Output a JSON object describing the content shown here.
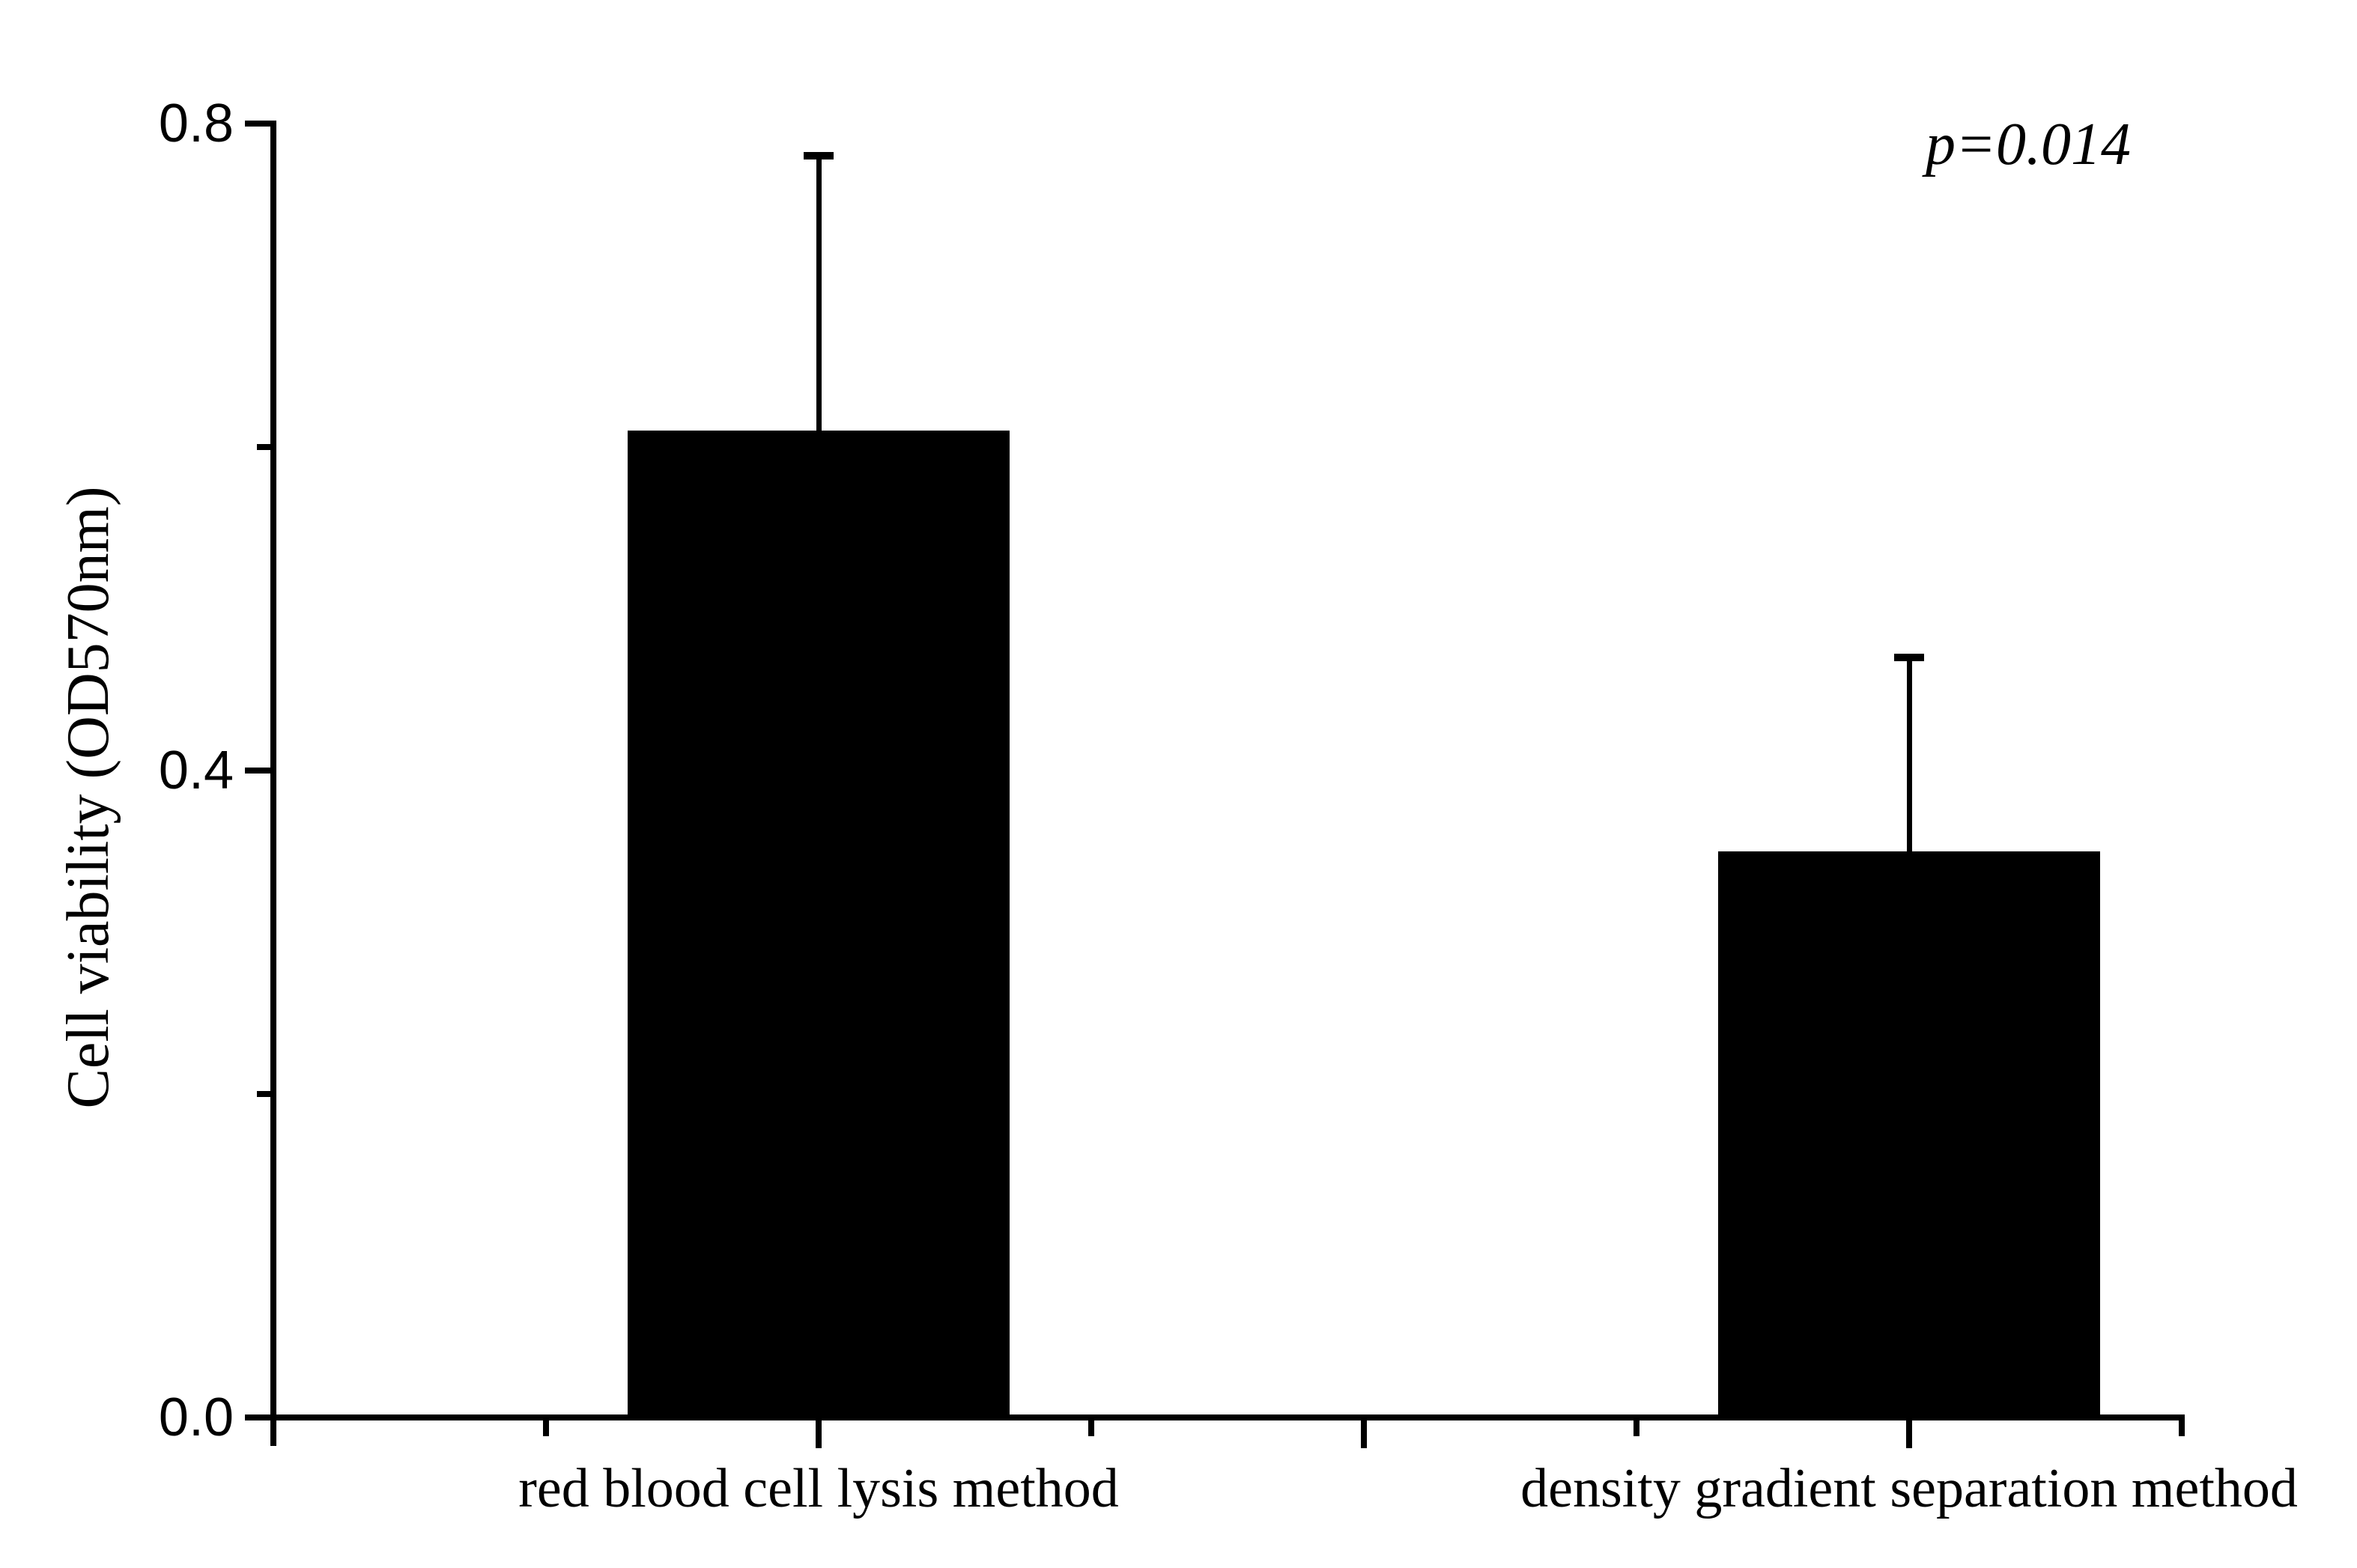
{
  "chart_data": {
    "type": "bar",
    "categories": [
      "red blood cell lysis method",
      "density gradient separation method"
    ],
    "values": [
      0.61,
      0.35
    ],
    "error_upper": [
      0.17,
      0.12
    ],
    "error_bars": "upper-only",
    "title": "",
    "xlabel": "",
    "ylabel": "Cell viability (OD570nm)",
    "ylim": [
      0,
      0.8
    ],
    "yticks_major": [
      0,
      0.4,
      0.8
    ],
    "ytick_labels": [
      "0.0",
      "0.4",
      "0.8"
    ],
    "yticks_minor": [
      0.2,
      0.6
    ],
    "bar_color": "#000000",
    "background_color": "#ffffff",
    "grid": false,
    "legend": false,
    "annotation": {
      "text": "p=0.014",
      "style": "italic",
      "position": "top-right"
    }
  }
}
